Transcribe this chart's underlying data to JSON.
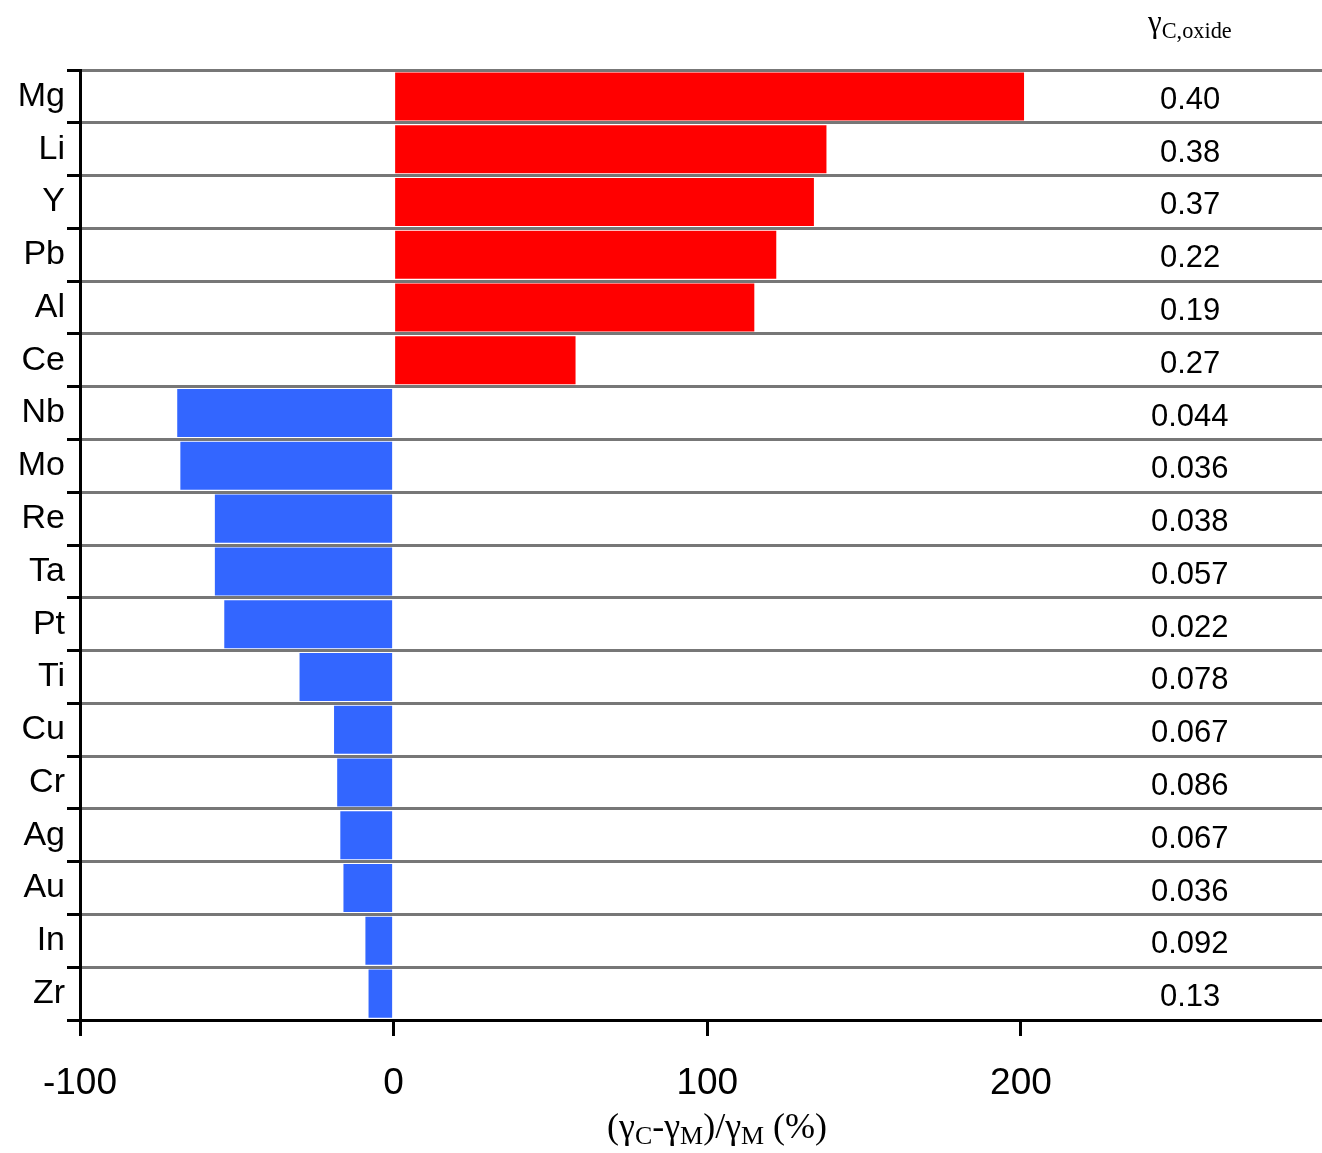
{
  "chart_data": {
    "type": "bar",
    "orientation": "horizontal",
    "xlabel": "(γ$_{C}$-γ$_{M}$)/γ$_{M}$ (%)",
    "categories": [
      "Mg",
      "Li",
      "Y",
      "Pb",
      "Al",
      "Ce",
      "Nb",
      "Mo",
      "Re",
      "Ta",
      "Pt",
      "Ti",
      "Cu",
      "Cr",
      "Ag",
      "Au",
      "In",
      "Zr"
    ],
    "values": [
      201,
      138,
      134,
      122,
      115,
      58,
      -69,
      -68,
      -57,
      -57,
      -54,
      -30,
      -19,
      -18,
      -17,
      -16,
      -9,
      -8
    ],
    "colors": [
      "#ff0000",
      "#ff0000",
      "#ff0000",
      "#ff0000",
      "#ff0000",
      "#ff0000",
      "#3366ff",
      "#3366ff",
      "#3366ff",
      "#3366ff",
      "#3366ff",
      "#3366ff",
      "#3366ff",
      "#3366ff",
      "#3366ff",
      "#3366ff",
      "#3366ff",
      "#3366ff"
    ],
    "xlim": [
      -100,
      296
    ],
    "xticks": [
      -100,
      0,
      100,
      200
    ],
    "grid": "y",
    "annotations": [
      "γ$_{C,oxide}$",
      "0.40",
      "0.38",
      "0.37",
      "0.22",
      "0.19",
      "0.27",
      "0.044",
      "0.036",
      "0.038",
      "0.057",
      "0.022",
      "0.078",
      "0.067",
      "0.086",
      "0.067",
      "0.036",
      "0.092",
      "0.13"
    ]
  }
}
